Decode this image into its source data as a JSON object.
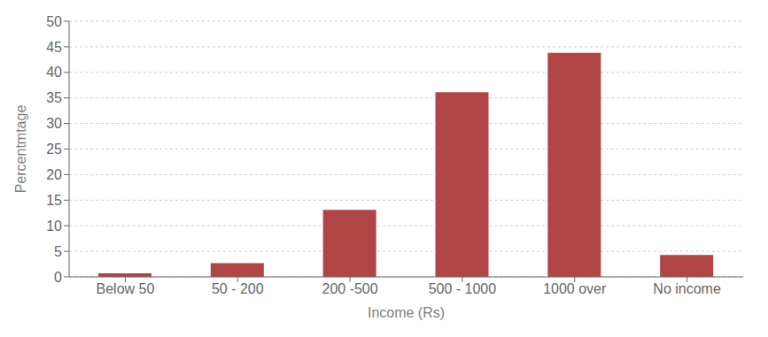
{
  "chart_data": {
    "type": "bar",
    "categories": [
      "Below 50",
      "50 - 200",
      "200 -500",
      "500 - 1000",
      "1000 over",
      "No income"
    ],
    "values": [
      0.7,
      2.7,
      13.1,
      36.1,
      43.8,
      4.3
    ],
    "color": "#b04545",
    "xlabel": "Income (Rs)",
    "ylabel": "Percentmtage",
    "ylim": [
      0,
      50
    ],
    "yticks": [
      0,
      5,
      10,
      15,
      20,
      25,
      30,
      35,
      40,
      45,
      50
    ],
    "grid": true
  }
}
